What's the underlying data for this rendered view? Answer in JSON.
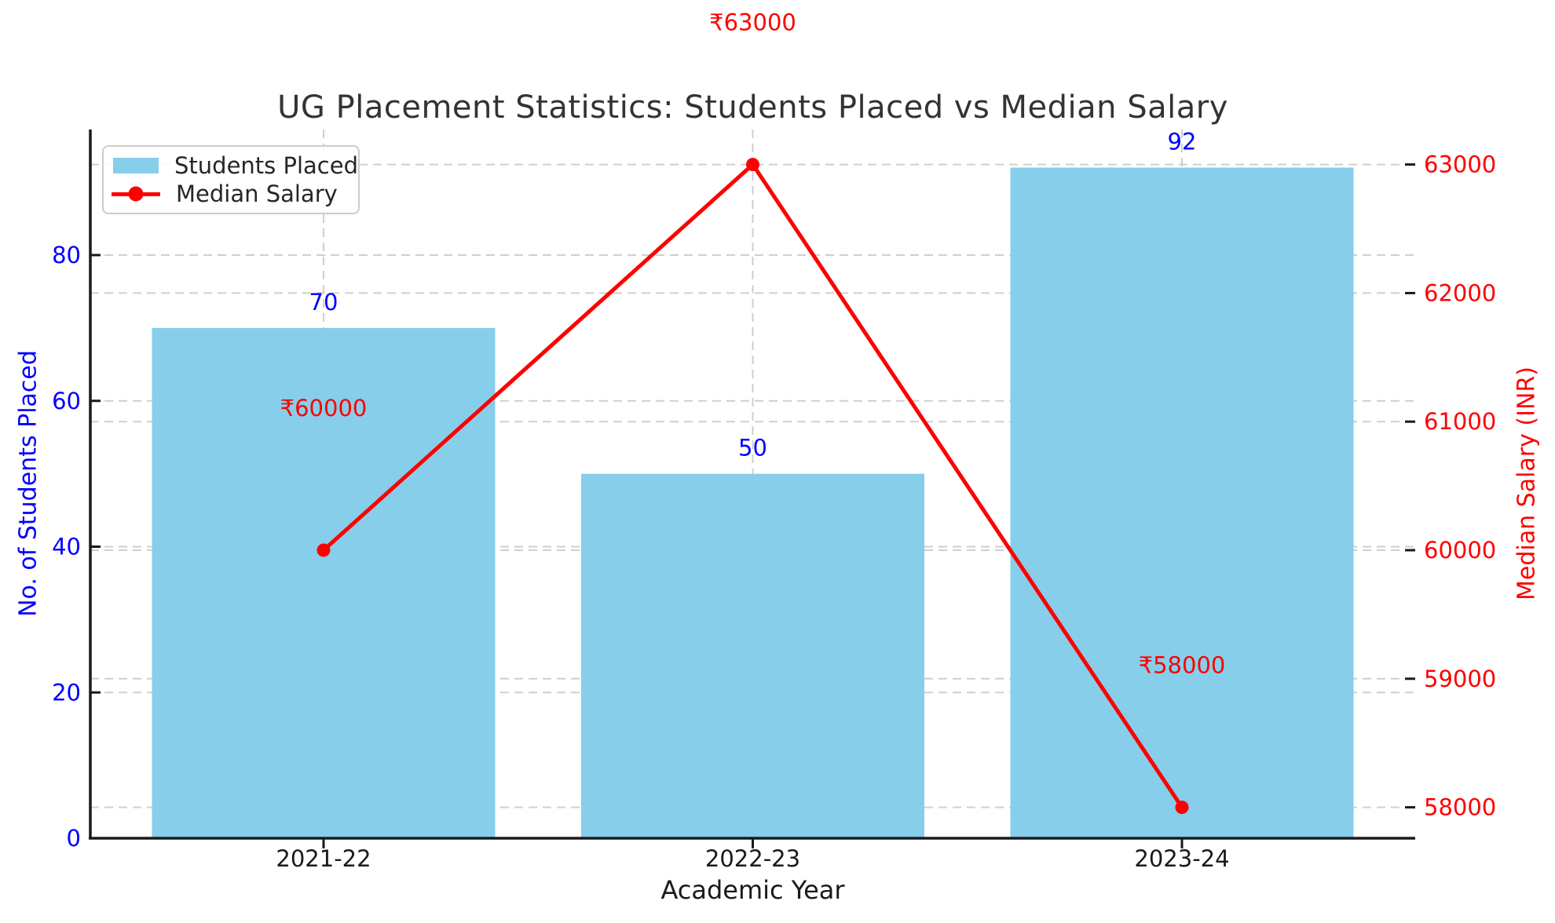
{
  "figure": {
    "title": "UG Placement Statistics: Students Placed vs Median Salary",
    "xlabel": "Academic Year",
    "ylabel_left": "No. of Students Placed",
    "ylabel_right": "Median Salary (INR)"
  },
  "legend": {
    "position": "upper left",
    "items": [
      {
        "label": "Students Placed",
        "marker": "bar-swatch"
      },
      {
        "label": "Median Salary",
        "marker": "line-with-dot-swatch"
      }
    ]
  },
  "colors": {
    "bar_fill": "#87ceeb",
    "line": "#ff0000",
    "left_axis_text": "#0000ff",
    "right_axis_text": "#ff0000",
    "x_axis_text": "#1a1a1a",
    "title_text": "#333333",
    "grid": "#cfcfcf",
    "spine": "#1a1a1a",
    "legend_border": "#cccccc"
  },
  "chart_data": {
    "type": "bar",
    "subtype": "bar-and-line-dual-axis",
    "title": "UG Placement Statistics: Students Placed vs Median Salary",
    "xlabel": "Academic Year",
    "ylabel_left": "No. of Students Placed",
    "ylabel_right": "Median Salary (INR)",
    "categories": [
      "2021-22",
      "2022-23",
      "2023-24"
    ],
    "series": [
      {
        "name": "Students Placed",
        "type": "bar",
        "axis": "left",
        "values": [
          70,
          50,
          92
        ],
        "point_labels": [
          "70",
          "50",
          "92"
        ],
        "color": "#87ceeb"
      },
      {
        "name": "Median Salary",
        "type": "line",
        "axis": "right",
        "values": [
          60000,
          63000,
          58000
        ],
        "point_labels": [
          "₹60000",
          "₹63000",
          "₹58000"
        ],
        "color": "#ff0000",
        "marker": "circle"
      }
    ],
    "left_axis": {
      "ticks": [
        0,
        20,
        40,
        60,
        80
      ],
      "tick_labels": [
        "0",
        "20",
        "40",
        "60",
        "80"
      ],
      "lim": [
        0,
        97.2
      ]
    },
    "right_axis": {
      "ticks": [
        58000,
        59000,
        60000,
        61000,
        62000,
        63000
      ],
      "tick_labels": [
        "58000",
        "59000",
        "60000",
        "61000",
        "62000",
        "63000"
      ],
      "lim": [
        57760,
        63270
      ]
    },
    "grid": true,
    "grid_style": "dashed",
    "legend_position": "upper left"
  }
}
